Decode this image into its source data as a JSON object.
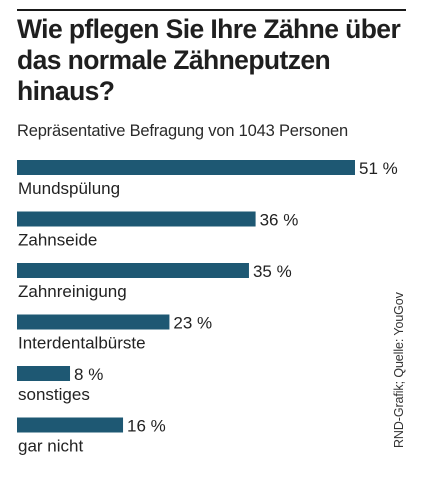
{
  "chart_data": {
    "type": "bar",
    "orientation": "horizontal",
    "title": "Wie pflegen Sie Ihre Zähne über das normale Zähneputzen hinaus?",
    "subtitle": "Repräsentative Befragung von 1043 Personen",
    "categories": [
      "Mundspülung",
      "Zahnseide",
      "Zahnreinigung",
      "Interdentalbürste",
      "sonstiges",
      "gar nicht"
    ],
    "values": [
      51,
      36,
      35,
      23,
      8,
      16
    ],
    "value_labels": [
      "51 %",
      "36 %",
      "35 %",
      "23 %",
      "8 %",
      "16 %"
    ],
    "unit": "%",
    "xlim": [
      0,
      51
    ],
    "grid": false,
    "bar_color": "#1e5873"
  },
  "source": "RND-Grafik; Quelle: YouGov"
}
